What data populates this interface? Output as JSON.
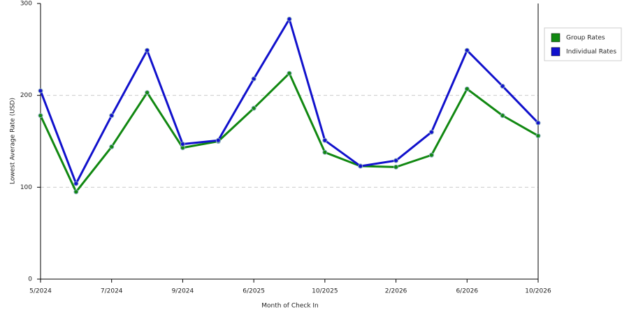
{
  "chart_data": {
    "type": "line",
    "x_label": "Month of Check In",
    "y_label": "Lowest Average Rate (USD)",
    "categories": [
      "5/2024",
      null,
      "7/2024",
      null,
      "9/2024",
      null,
      "6/2025",
      null,
      "10/2025",
      null,
      "2/2026",
      null,
      "6/2026",
      null,
      "10/2026"
    ],
    "series": [
      {
        "name": "Group Rates",
        "color": "#118811",
        "values": [
          178,
          95,
          144,
          203,
          143,
          150,
          186,
          224,
          138,
          123,
          122,
          135,
          207,
          178,
          156
        ]
      },
      {
        "name": "Individual Rates",
        "color": "#1111cc",
        "values": [
          205,
          104,
          178,
          249,
          147,
          151,
          218,
          283,
          151,
          123,
          129,
          160,
          249,
          210,
          170
        ]
      }
    ],
    "ylim": [
      0,
      300
    ],
    "yticks": [
      0,
      100,
      200,
      300
    ],
    "grid": true,
    "legend": "top-right"
  }
}
